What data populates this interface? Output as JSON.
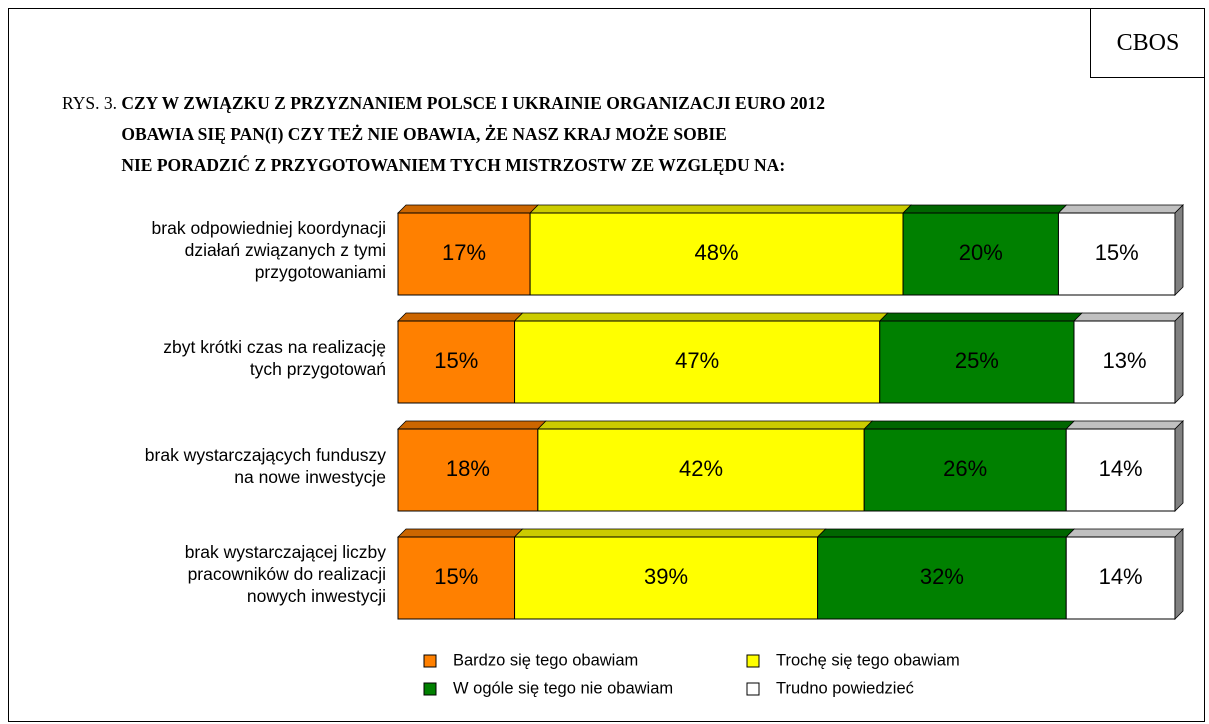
{
  "source": "CBOS",
  "chart_data": {
    "type": "stacked-barh",
    "figure_label": "RYS. 3.",
    "title": "CZY W ZWIĄZKU Z PRZYZNANIEM POLSCE I UKRAINIE ORGANIZACJI EURO 2012\nOBAWIA SIĘ PAN(I) CZY TEŻ NIE OBAWIA, ŻE NASZ KRAJ MOŻE SOBIE\nNIE  PORADZIĆ Z PRZYGOTOWANIEM TYCH MISTRZOSTW ZE WZGLĘDU NA:",
    "categories": [
      "brak odpowiedniej koordynacji\ndziałań związanych z tymi\nprzygotowaniami",
      "zbyt krótki czas na realizację\ntych przygotowań",
      "brak wystarczających funduszy\nna nowe inwestycje",
      "brak wystarczającej liczby\npracowników do realizacji\nnowych inwestycji"
    ],
    "xlim": [
      0,
      100
    ],
    "series": [
      {
        "name": "Bardzo się tego obawiam",
        "color": "#ff8000",
        "values": [
          17,
          15,
          18,
          15
        ],
        "value_labels": [
          "17%",
          "15%",
          "18%",
          "15%"
        ]
      },
      {
        "name": "Trochę się tego obawiam",
        "color": "#ffff00",
        "values": [
          48,
          47,
          42,
          39
        ],
        "value_labels": [
          "48%",
          "47%",
          "42%",
          "39%"
        ]
      },
      {
        "name": "W ogóle się tego nie obawiam",
        "color": "#008000",
        "values": [
          20,
          25,
          26,
          32
        ],
        "value_labels": [
          "20%",
          "25%",
          "26%",
          "32%"
        ]
      },
      {
        "name": "Trudno powiedzieć",
        "color": "#ffffff",
        "values": [
          15,
          13,
          14,
          14
        ],
        "value_labels": [
          "15%",
          "13%",
          "14%",
          "14%"
        ]
      }
    ]
  }
}
